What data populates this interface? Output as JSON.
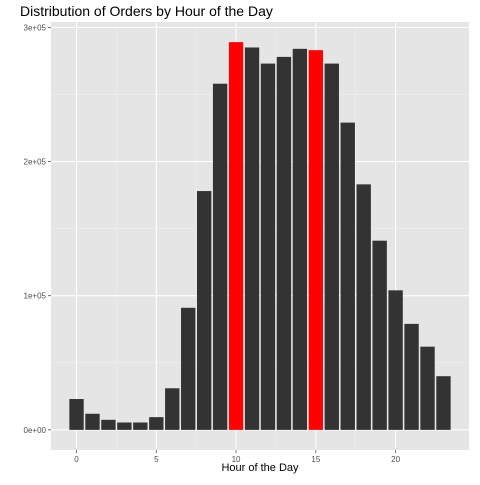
{
  "chart_data": {
    "type": "bar",
    "title": "Distribution of Orders by Hour of the Day",
    "xlabel": "Hour of the Day",
    "ylabel": "",
    "x": [
      0,
      1,
      2,
      3,
      4,
      5,
      6,
      7,
      8,
      9,
      10,
      11,
      12,
      13,
      14,
      15,
      16,
      17,
      18,
      19,
      20,
      21,
      22,
      23
    ],
    "values": [
      23000,
      12000,
      7500,
      5500,
      5500,
      9500,
      31000,
      91000,
      178000,
      258000,
      289000,
      285000,
      273000,
      278000,
      284000,
      283000,
      273000,
      229000,
      183000,
      141000,
      104000,
      79000,
      62000,
      40000
    ],
    "highlighted_x": [
      10,
      15
    ],
    "xlim": [
      -1.6,
      24.6
    ],
    "ylim": [
      -15000,
      304000
    ],
    "x_ticks": [
      0,
      5,
      10,
      15,
      20
    ],
    "x_tick_labels": [
      "0",
      "5",
      "10",
      "15",
      "20"
    ],
    "y_ticks": [
      0,
      100000,
      200000,
      300000
    ],
    "y_tick_labels": [
      "0e+00",
      "1e+05",
      "2e+05",
      "3e+05"
    ],
    "grid": true,
    "colors": {
      "bar": "#333333",
      "highlight": "#ff0000",
      "panel": "#e5e5e5",
      "grid_major": "#ffffff",
      "grid_minor": "#f2f2f2"
    }
  }
}
